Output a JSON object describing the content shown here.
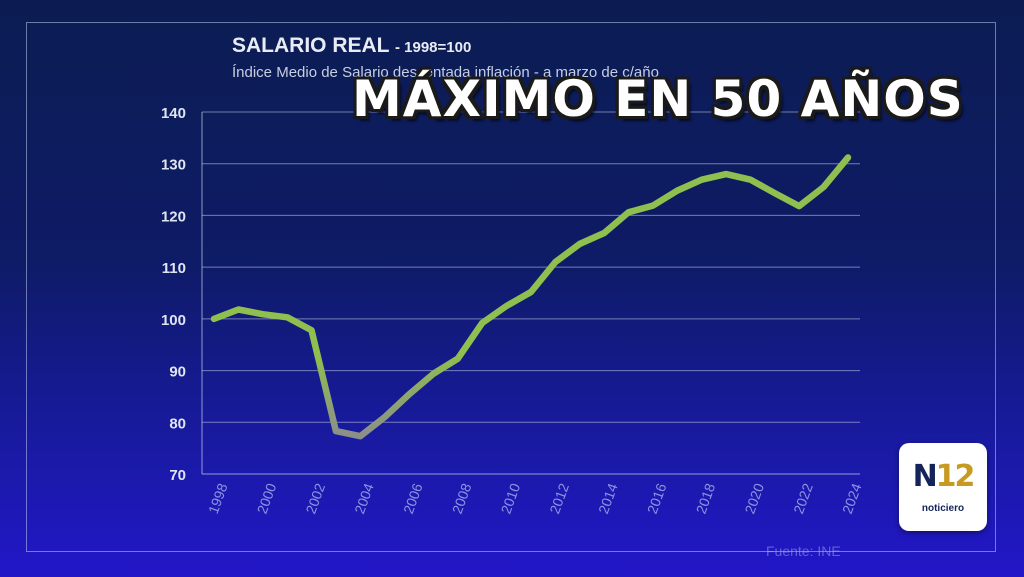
{
  "headline": "MÁXIMO EN 50 AÑOS",
  "source": "Fuente: INE",
  "logo": {
    "mark_letter": "N",
    "mark_number": "12",
    "caption": "noticiero"
  },
  "colors": {
    "line": "#8fbf4f",
    "line_dip": "#8c8c8c",
    "grid": "#c8d2ec",
    "axis_text": "#dfe5f3"
  },
  "chart_data": {
    "type": "line",
    "title": "SALARIO REAL",
    "title_suffix": "- 1998=100",
    "subtitle": "Índice Medio de Salario descontada inflación - a marzo de c/año",
    "x": [
      1998,
      1999,
      2000,
      2001,
      2002,
      2003,
      2004,
      2005,
      2006,
      2007,
      2008,
      2009,
      2010,
      2011,
      2012,
      2013,
      2014,
      2015,
      2016,
      2017,
      2018,
      2019,
      2020,
      2021,
      2022,
      2023,
      2024
    ],
    "values": [
      100,
      101.8,
      100.9,
      100.3,
      97.8,
      78.3,
      77.3,
      81,
      85.4,
      89.4,
      92.3,
      99.2,
      102.5,
      105.2,
      111,
      114.5,
      116.6,
      120.6,
      121.9,
      124.8,
      126.9,
      128,
      126.9,
      124.3,
      121.8,
      125.5,
      131.2
    ],
    "x_ticks": [
      "1998",
      "2000",
      "2002",
      "2004",
      "2006",
      "2008",
      "2010",
      "2012",
      "2014",
      "2016",
      "2018",
      "2020",
      "2022",
      "2024"
    ],
    "y_ticks": [
      70,
      80,
      90,
      100,
      110,
      120,
      130,
      140
    ],
    "ylim": [
      70,
      140
    ],
    "xlim": [
      1998,
      2024
    ],
    "grid": true,
    "legend": "none"
  }
}
